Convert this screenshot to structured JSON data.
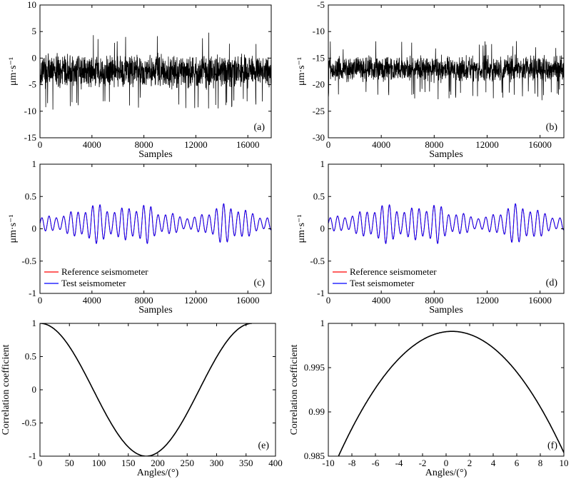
{
  "chart_data": [
    {
      "panel": "a",
      "type": "line",
      "label": "(a)",
      "xlabel": "Samples",
      "ylabel": "μm·s⁻¹",
      "xlim": [
        0,
        17800
      ],
      "ylim": [
        -15,
        10
      ],
      "xticks": [
        0,
        4000,
        8000,
        12000,
        16000
      ],
      "yticks": [
        10,
        5,
        0,
        -5,
        -10,
        -15
      ],
      "signal": {
        "kind": "noise",
        "mean": -2.5,
        "spread": 2.2,
        "peak_low": -9.5,
        "peak_high": 4.8,
        "n": 1400,
        "color": "#000000"
      }
    },
    {
      "panel": "b",
      "type": "line",
      "label": "(b)",
      "xlabel": "Samples",
      "ylabel": "μm·s⁻¹",
      "xlim": [
        0,
        17800
      ],
      "ylim": [
        -30,
        -5
      ],
      "xticks": [
        0,
        4000,
        8000,
        12000,
        16000
      ],
      "yticks": [
        -5,
        -10,
        -15,
        -20,
        -25,
        -30
      ],
      "signal": {
        "kind": "noise",
        "mean": -17,
        "spread": 1.7,
        "peak_low": -23,
        "peak_high": -11.8,
        "n": 1400,
        "color": "#000000"
      }
    },
    {
      "panel": "c",
      "type": "line",
      "label": "(c)",
      "xlabel": "Samples",
      "ylabel": "μm·s⁻¹",
      "xlim": [
        0,
        17800
      ],
      "ylim": [
        -1,
        1
      ],
      "xticks": [
        0,
        4000,
        8000,
        12000,
        16000
      ],
      "yticks": [
        1,
        0.5,
        0,
        -0.5,
        -1
      ],
      "series": [
        {
          "name": "Reference seismometer",
          "color": "#ff0000"
        },
        {
          "name": "Test seismometer",
          "color": "#0000ff"
        }
      ],
      "signal": {
        "kind": "wave",
        "offset": 0.08,
        "amplitude": 0.28,
        "envelope_peaks": [
          4500,
          7500,
          14300
        ],
        "cycle_samples": 560
      }
    },
    {
      "panel": "d",
      "type": "line",
      "label": "(d)",
      "xlabel": "Samples",
      "ylabel": "μm·s⁻¹",
      "xlim": [
        0,
        17800
      ],
      "ylim": [
        -1,
        1
      ],
      "xticks": [
        0,
        4000,
        8000,
        12000,
        16000
      ],
      "yticks": [
        1,
        0.5,
        0,
        -0.5,
        -1
      ],
      "series": [
        {
          "name": "Reference seismometer",
          "color": "#ff0000"
        },
        {
          "name": "Test seismometer",
          "color": "#0000ff"
        }
      ],
      "signal": {
        "kind": "wave",
        "offset": 0.08,
        "amplitude": 0.28,
        "envelope_peaks": [
          4500,
          7500,
          14300
        ],
        "cycle_samples": 560
      }
    },
    {
      "panel": "e",
      "type": "line",
      "label": "(e)",
      "xlabel": "Angles/(°)",
      "ylabel": "Correlation coefficient",
      "xlim": [
        0,
        400
      ],
      "ylim": [
        -1,
        1
      ],
      "xticks": [
        0,
        50,
        100,
        150,
        200,
        250,
        300,
        350,
        400
      ],
      "yticks": [
        1,
        0.5,
        0,
        -0.5,
        -1
      ],
      "signal": {
        "kind": "cosine",
        "phase_deg": 0.5,
        "x_from": 0,
        "x_to": 360,
        "color": "#000000"
      }
    },
    {
      "panel": "f",
      "type": "line",
      "label": "(f)",
      "xlabel": "Angles/(°)",
      "ylabel": "Correlation coefficient",
      "xlim": [
        -10,
        10
      ],
      "ylim": [
        0.985,
        1
      ],
      "xticks": [
        -10,
        -8,
        -6,
        -4,
        -2,
        0,
        2,
        4,
        6,
        8,
        10
      ],
      "yticks": [
        1,
        0.995,
        0.99,
        0.985
      ],
      "signal": {
        "kind": "cosine",
        "phase_deg": 0.5,
        "scale": 0.9991,
        "x_from": -10,
        "x_to": 10,
        "color": "#000000"
      }
    }
  ]
}
